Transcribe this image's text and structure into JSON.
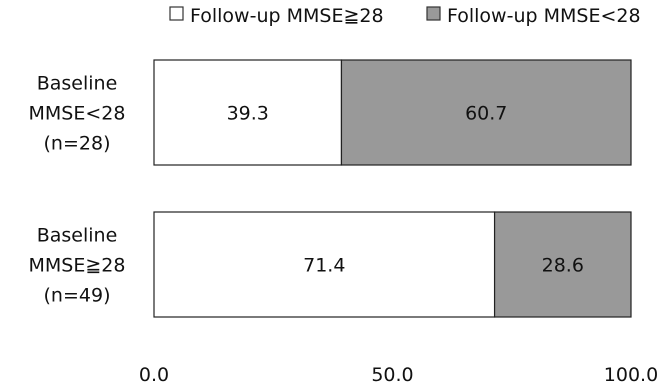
{
  "chart_data": {
    "type": "bar",
    "orientation": "horizontal",
    "stacked": true,
    "categories": [
      [
        "Baseline",
        "MMSE<28",
        "(n=28)"
      ],
      [
        "Baseline",
        "MMSE≧28",
        "(n=49)"
      ]
    ],
    "series": [
      {
        "name": "Follow-up MMSE≧28",
        "color": "#ffffff",
        "values": [
          39.3,
          71.4
        ],
        "labels": [
          "39.3",
          "71.4"
        ]
      },
      {
        "name": "Follow-up MMSE<28",
        "color": "#999999",
        "values": [
          60.7,
          28.6
        ],
        "labels": [
          "60.7",
          "28.6"
        ]
      }
    ],
    "xlim": [
      0,
      100
    ],
    "xticks": [
      0,
      50,
      100
    ],
    "xtick_labels": [
      "0.0",
      "50.0",
      "100.0"
    ],
    "legend": {
      "position": "top",
      "items": [
        {
          "marker": "□",
          "label": "Follow-up MMSE≧28"
        },
        {
          "marker": "■",
          "label": "Follow-up MMSE<28"
        }
      ]
    },
    "grid": false
  }
}
